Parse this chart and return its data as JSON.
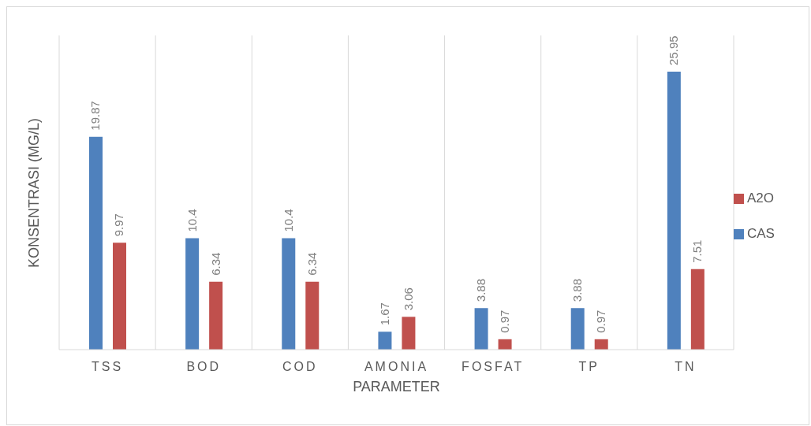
{
  "chart_data": {
    "type": "bar",
    "xlabel": "PARAMETER",
    "ylabel": "KONSENTRASI (MG/L)",
    "categories": [
      "TSS",
      "BOD",
      "COD",
      "AMONIA",
      "FOSFAT",
      "TP",
      "TN"
    ],
    "series": [
      {
        "name": "CAS",
        "color": "#4f81bd",
        "values": [
          19.87,
          10.4,
          10.4,
          1.67,
          3.88,
          3.88,
          25.95
        ]
      },
      {
        "name": "A2O",
        "color": "#c0504d",
        "values": [
          9.97,
          6.34,
          6.34,
          3.06,
          0.97,
          0.97,
          7.51
        ]
      }
    ],
    "data_labels": true,
    "grid": "x",
    "legend": "right"
  }
}
